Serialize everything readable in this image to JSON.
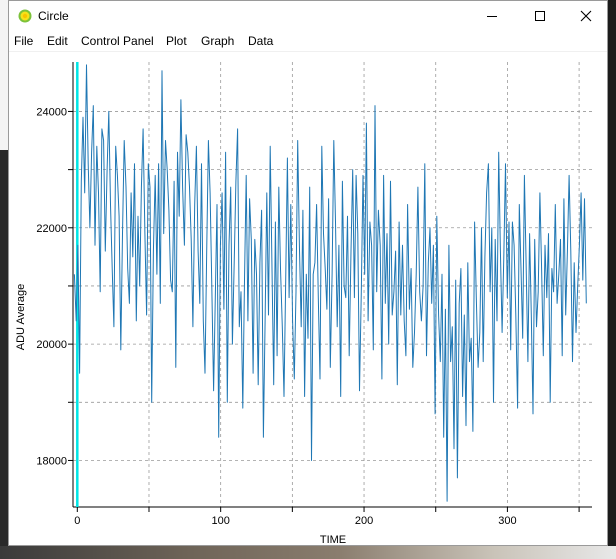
{
  "window": {
    "title": "Circle",
    "icon": "sun-icon"
  },
  "menu": [
    {
      "label": "File"
    },
    {
      "label": "Edit"
    },
    {
      "label": "Control Panel"
    },
    {
      "label": "Plot"
    },
    {
      "label": "Graph"
    },
    {
      "label": "Data"
    }
  ],
  "colors": {
    "series": "#1f77b4",
    "marker": "#00e5e5",
    "grid": "#9a9a9a"
  },
  "chart_data": {
    "type": "line",
    "xlabel": "TIME",
    "ylabel": "ADU Average",
    "xlim": [
      -3,
      359
    ],
    "ylim": [
      17200,
      24850
    ],
    "xticks": [
      0,
      100,
      200,
      300
    ],
    "yticks": [
      18000,
      20000,
      22000,
      24000
    ],
    "grid": true,
    "marker_x": 0,
    "series": [
      {
        "values": [
          21200,
          20400,
          21700,
          19500,
          22800,
          23900,
          22600,
          24800,
          23100,
          22000,
          23300,
          24100,
          21700,
          23400,
          22600,
          20900,
          23700,
          23500,
          21600,
          23000,
          24000,
          22400,
          21300,
          20300,
          23400,
          22900,
          22200,
          19900,
          21900,
          23500,
          22700,
          21300,
          20700,
          22600,
          21500,
          23100,
          20400,
          22200,
          21000,
          22700,
          23700,
          21900,
          20500,
          23100,
          22700,
          19000,
          21600,
          22900,
          21200,
          23100,
          20700,
          24700,
          21900,
          23500,
          23000,
          22300,
          21100,
          20900,
          22800,
          19600,
          23300,
          22200,
          24200,
          22700,
          21700,
          23600,
          23300,
          22700,
          21800,
          20300,
          22400,
          23400,
          21600,
          20700,
          23100,
          20400,
          19500,
          21600,
          23500,
          22600,
          21000,
          19200,
          20800,
          22400,
          18400,
          21700,
          22600,
          20600,
          23300,
          19000,
          21700,
          22700,
          20000,
          21400,
          22800,
          23700,
          20300,
          20900,
          18900,
          21100,
          22900,
          20400,
          22500,
          21800,
          19500,
          21800,
          21200,
          19300,
          21400,
          22300,
          18400,
          20400,
          22600,
          20500,
          23400,
          21300,
          19300,
          22100,
          19800,
          22700,
          21300,
          20300,
          19100,
          21100,
          23200,
          20800,
          22400,
          20400,
          19400,
          20900,
          23500,
          21700,
          20300,
          22300,
          19100,
          21200,
          20100,
          22700,
          18000,
          21200,
          21400,
          22400,
          20800,
          19400,
          23400,
          21900,
          21300,
          20600,
          22500,
          19600,
          21200,
          23500,
          22100,
          20300,
          21700,
          19100,
          22800,
          21000,
          20800,
          22200,
          19800,
          21600,
          23000,
          20800,
          22900,
          21900,
          19200,
          20900,
          22900,
          21200,
          23800,
          20400,
          22100,
          21700,
          19900,
          24100,
          20900,
          22300,
          21700,
          19400,
          22900,
          20700,
          21900,
          20000,
          22800,
          20500,
          20900,
          21600,
          19300,
          22100,
          20500,
          21700,
          20400,
          19800,
          22400,
          20600,
          21300,
          19600,
          20200,
          21200,
          22700,
          20900,
          20400,
          21000,
          23100,
          19800,
          21400,
          22000,
          20700,
          21700,
          18800,
          22200,
          20500,
          19700,
          21200,
          18400,
          20600,
          17300,
          21700,
          19700,
          20300,
          18200,
          21100,
          17700,
          20700,
          21300,
          19100,
          20500,
          18600,
          21400,
          19700,
          20100,
          18500,
          22100,
          20800,
          19600,
          20200,
          22000,
          19700,
          21500,
          22600,
          23100,
          20900,
          22000,
          19000,
          21800,
          20400,
          23300,
          21600,
          20200,
          21500,
          23100,
          20800,
          22100,
          19900,
          22100,
          21700,
          20500,
          18900,
          22400,
          21300,
          20100,
          22900,
          21300,
          19700,
          21900,
          20500,
          18800,
          21800,
          20300,
          20900,
          22600,
          21300,
          19800,
          21700,
          20800,
          21900,
          19000,
          21300,
          20900,
          22400,
          20700,
          21200,
          21800,
          19800,
          22500,
          20500,
          21600,
          22900,
          21600,
          19700,
          21400,
          20200,
          21000,
          21700,
          22600,
          21100,
          22500,
          20700
        ]
      }
    ]
  }
}
